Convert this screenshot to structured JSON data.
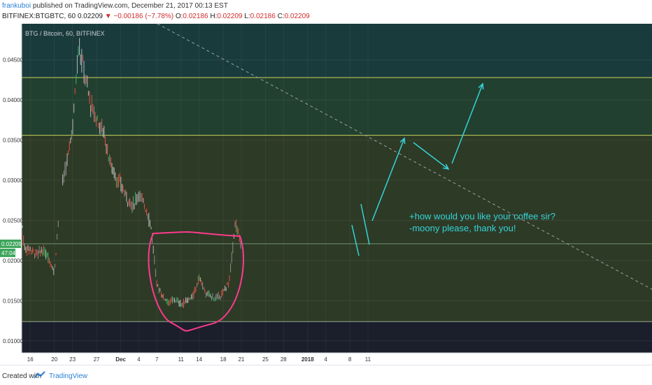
{
  "header": {
    "author": "frankuboi",
    "published_text": "published on TradingView.com, December 21, 2017 00:13 EST",
    "symbol": "BITFINEX:BTGBTC, 60",
    "last": "0.02209",
    "change": "−0.00186 (−7.78%)",
    "ohlc_o_label": "O:",
    "ohlc_o": "0.02186",
    "ohlc_h_label": "H:",
    "ohlc_h": "0.02209",
    "ohlc_l_label": "L:",
    "ohlc_l": "0.02186",
    "ohlc_c_label": "C:",
    "ohlc_c": "0.02209"
  },
  "footer": {
    "created_with": "Created with",
    "brand": "TradingView"
  },
  "colors": {
    "band_dark_teal": "#1a3b3c",
    "band_olive": "#2d3a26",
    "band_bottom": "#1b1f2c",
    "candle_up": "#b9b9b9",
    "candle_green": "#2fb85f",
    "candle_red": "#e05246",
    "level_line": "#c6d35b",
    "ellipse": "#ff3a8c",
    "arrow": "#35d4d8",
    "price_label_bg": "#3ca45a"
  },
  "chart_data": {
    "type": "line",
    "title": "BTG / Bitcoin, 60, BITFINEX",
    "price_label": "0.02209",
    "countdown_label": "47:04",
    "x_ticks": [
      "16",
      "20",
      "23",
      "27",
      "Dec",
      "4",
      "7",
      "11",
      "14",
      "18",
      "21",
      "25",
      "28",
      "2018",
      "4",
      "8",
      "11"
    ],
    "y_ticks": [
      "0.04500",
      "0.04000",
      "0.03500",
      "0.03000",
      "0.02500",
      "0.02000",
      "0.01500",
      "0.01000"
    ],
    "ylim": [
      0.0085,
      0.0495
    ],
    "series": [
      {
        "x": [
          "2017-11-14",
          "2017-11-15",
          "2017-11-16",
          "2017-11-17",
          "2017-11-18",
          "2017-11-19",
          "2017-11-20",
          "2017-11-21",
          "2017-11-22",
          "2017-11-23",
          "2017-11-24",
          "2017-11-25",
          "2017-11-26",
          "2017-11-27",
          "2017-11-28",
          "2017-11-29",
          "2017-11-30",
          "2017-12-01",
          "2017-12-02",
          "2017-12-03",
          "2017-12-04",
          "2017-12-05",
          "2017-12-06",
          "2017-12-07",
          "2017-12-08",
          "2017-12-09",
          "2017-12-10",
          "2017-12-11",
          "2017-12-12",
          "2017-12-13",
          "2017-12-14",
          "2017-12-15",
          "2017-12-16",
          "2017-12-17",
          "2017-12-18",
          "2017-12-19",
          "2017-12-20",
          "2017-12-21"
        ],
        "y": [
          0.0305,
          0.0215,
          0.0215,
          0.0208,
          0.0212,
          0.0205,
          0.0185,
          0.0285,
          0.0318,
          0.0365,
          0.0468,
          0.0435,
          0.0395,
          0.0375,
          0.0365,
          0.033,
          0.0305,
          0.0295,
          0.0278,
          0.0268,
          0.0285,
          0.0268,
          0.0245,
          0.017,
          0.0155,
          0.0148,
          0.0152,
          0.0145,
          0.015,
          0.0155,
          0.018,
          0.016,
          0.0155,
          0.0153,
          0.016,
          0.0175,
          0.0248,
          0.0221
        ]
      }
    ],
    "levels": [
      0.0428,
      0.0356,
      0.0124
    ],
    "annotation_lines": [
      "+how would you like your coffee sir?",
      "-moony please, thank you!"
    ]
  }
}
